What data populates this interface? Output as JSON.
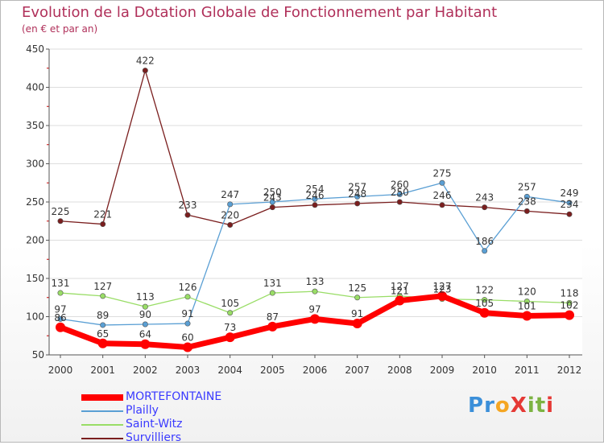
{
  "title": "Evolution de la Dotation Globale de Fonctionnement par Habitant",
  "subtitle": "(en € et par an)",
  "logo": {
    "text": "ProXiti",
    "letters": [
      "P",
      "r",
      "o",
      "X",
      "i",
      "t",
      "i"
    ],
    "colors": [
      "#3b8fd9",
      "#3b8fd9",
      "#f5a623",
      "#e53935",
      "#7cb342",
      "#7cb342",
      "#e53935"
    ]
  },
  "chart_data": {
    "type": "line",
    "title": "Evolution de la Dotation Globale de Fonctionnement par Habitant",
    "ylabel": "(en € et par an)",
    "categories": [
      "2000",
      "2001",
      "2002",
      "2003",
      "2004",
      "2005",
      "2006",
      "2007",
      "2008",
      "2009",
      "2010",
      "2011",
      "2012"
    ],
    "ylim": [
      50,
      450
    ],
    "yticks": [
      50,
      100,
      150,
      200,
      250,
      300,
      350,
      400,
      450
    ],
    "series": [
      {
        "name": "Survilliers",
        "color": "#7a1e1e",
        "values": [
          225,
          221,
          422,
          233,
          220,
          243,
          246,
          248,
          250,
          246,
          243,
          238,
          234
        ]
      },
      {
        "name": "Plailly",
        "color": "#5a9fd4",
        "values": [
          97,
          89,
          90,
          91,
          247,
          250,
          254,
          257,
          260,
          275,
          186,
          257,
          249
        ]
      },
      {
        "name": "Saint-Witz",
        "color": "#99dd66",
        "values": [
          131,
          127,
          113,
          126,
          105,
          131,
          133,
          125,
          127,
          123,
          122,
          120,
          118
        ]
      },
      {
        "name": "MORTEFONTAINE",
        "color": "#ff0000",
        "values": [
          86,
          65,
          64,
          60,
          73,
          87,
          97,
          91,
          121,
          127,
          105,
          101,
          102
        ]
      }
    ],
    "labels": {
      "Survilliers": [
        "225",
        "221",
        "422",
        "233",
        "220",
        "243",
        "246",
        "248",
        "250",
        "246",
        "243",
        "238",
        "234"
      ],
      "Plailly": [
        "97",
        "89",
        "90",
        "91",
        "247",
        "250",
        "254",
        "257",
        "260",
        "275",
        "186",
        "257",
        "249"
      ],
      "Saint-Witz": [
        "131",
        "127",
        "113",
        "126",
        "105",
        "131",
        "133",
        "125",
        "127",
        "123",
        "122",
        "120",
        "118"
      ],
      "MORTEFONTAINE": [
        "86",
        "65",
        "64",
        "60",
        "73",
        "87",
        "97",
        "91",
        "121",
        "127",
        "105",
        "101",
        "102"
      ]
    },
    "legend": [
      "MORTEFONTAINE",
      "Plailly",
      "Saint-Witz",
      "Survilliers"
    ]
  }
}
